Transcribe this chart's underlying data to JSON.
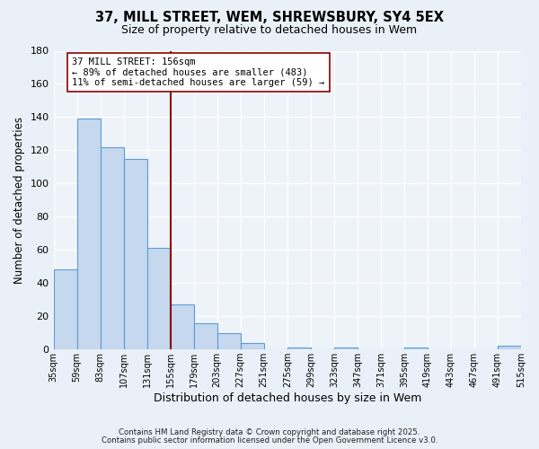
{
  "title1": "37, MILL STREET, WEM, SHREWSBURY, SY4 5EX",
  "title2": "Size of property relative to detached houses in Wem",
  "xlabel": "Distribution of detached houses by size in Wem",
  "ylabel": "Number of detached properties",
  "tick_labels": [
    "35sqm",
    "59sqm",
    "83sqm",
    "107sqm",
    "131sqm",
    "155sqm",
    "179sqm",
    "203sqm",
    "227sqm",
    "251sqm",
    "275sqm",
    "299sqm",
    "323sqm",
    "347sqm",
    "371sqm",
    "395sqm",
    "419sqm",
    "443sqm",
    "467sqm",
    "491sqm",
    "515sqm"
  ],
  "values": [
    48,
    139,
    122,
    115,
    61,
    27,
    16,
    10,
    4,
    0,
    1,
    0,
    1,
    0,
    0,
    1,
    0,
    0,
    0,
    2
  ],
  "bar_color": "#c5d8ed",
  "bar_edge_color": "#5b9bd5",
  "vline_color": "#8b0000",
  "annotation_text": "37 MILL STREET: 156sqm\n← 89% of detached houses are smaller (483)\n11% of semi-detached houses are larger (59) →",
  "ylim": [
    0,
    180
  ],
  "yticks": [
    0,
    20,
    40,
    60,
    80,
    100,
    120,
    140,
    160,
    180
  ],
  "footer1": "Contains HM Land Registry data © Crown copyright and database right 2025.",
  "footer2": "Contains public sector information licensed under the Open Government Licence v3.0.",
  "bg_color": "#eaf0f8",
  "plot_bg": "#eef3fa"
}
